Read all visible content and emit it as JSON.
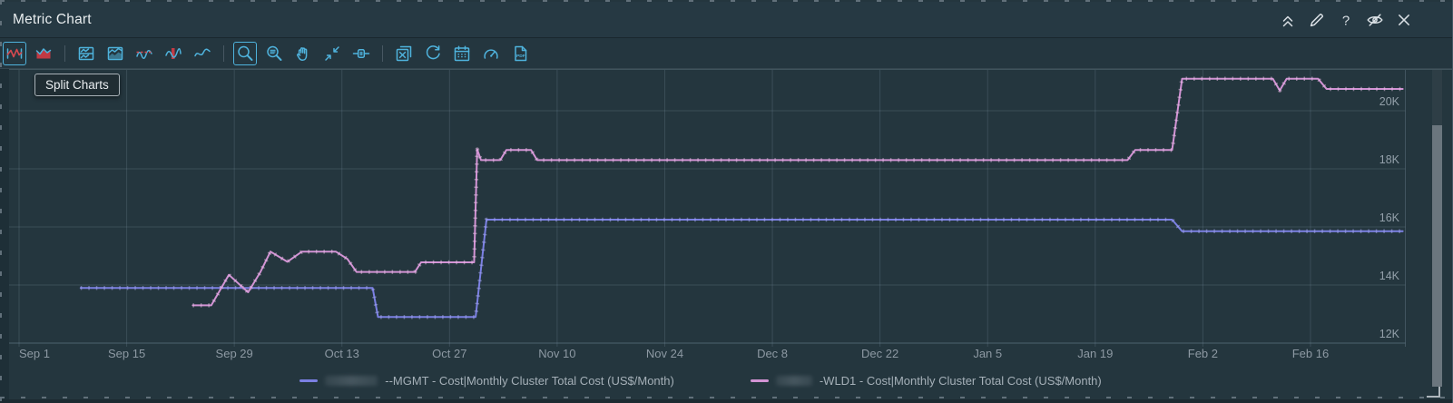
{
  "window": {
    "title": "Metric Chart",
    "actions": [
      "collapse",
      "edit",
      "help",
      "hide",
      "close"
    ]
  },
  "toolbar": {
    "icons": [
      "line-chart",
      "area-chart",
      "separator",
      "split-charts",
      "stacked-chart",
      "dynamic-thresholds",
      "anomalies",
      "trend-line",
      "separator",
      "zoom-view",
      "zoom-context",
      "pan",
      "zoom-all",
      "date-controls",
      "separator",
      "clear-selections",
      "refresh",
      "calendar",
      "dashboard",
      "export-pdf"
    ],
    "active": [
      "line-chart",
      "zoom-view"
    ],
    "accent_blue": "#4fb3dd",
    "accent_red": "#d4494f"
  },
  "tooltip": {
    "text": "Split Charts"
  },
  "legend": {
    "items": [
      {
        "label": "--MGMT - Cost|Monthly Cluster Total Cost (US$/Month)",
        "color": "#7b80e3",
        "prefix_redacted": true,
        "redacted_width": 58
      },
      {
        "label": "-WLD1 - Cost|Monthly Cluster Total Cost (US$/Month)",
        "color": "#d293d4",
        "prefix_redacted": true,
        "redacted_width": 40
      }
    ]
  },
  "chart_data": {
    "type": "line",
    "title": "",
    "x_axis": {
      "tick_labels": [
        "Sep 1",
        "Sep 15",
        "Sep 29",
        "Oct 13",
        "Oct 27",
        "Nov 10",
        "Nov 24",
        "Dec 8",
        "Dec 22",
        "Jan 5",
        "Jan 19",
        "Feb 2",
        "Feb 16"
      ],
      "tick_interval_days": 14,
      "grid": true,
      "note": "series x values are days from Sep 1"
    },
    "y_axis": {
      "tick_labels": [
        "12K",
        "14K",
        "16K",
        "18K",
        "20K"
      ],
      "tick_values_usd": [
        12000,
        14000,
        16000,
        18000,
        20000
      ],
      "range_usd": [
        11700,
        21700
      ],
      "unit": "US$/Month",
      "side": "right",
      "grid": true
    },
    "legend_position": "bottom",
    "series": [
      {
        "name": "MGMT - Cost|Monthly Cluster Total Cost (US$/Month)",
        "prefix_redacted": true,
        "color": "#7b80e3",
        "marker_color": "#a7aaf2",
        "points_day_usd": [
          [
            8,
            13900
          ],
          [
            46,
            13900
          ],
          [
            46.7,
            12900
          ],
          [
            59.4,
            12900
          ],
          [
            60.8,
            16250
          ],
          [
            150,
            16250
          ],
          [
            151.3,
            15850
          ],
          [
            180,
            15850
          ]
        ]
      },
      {
        "name": "WLD1 - Cost|Monthly Cluster Total Cost (US$/Month)",
        "prefix_redacted": true,
        "color": "#d293d4",
        "marker_color": "#ecc0ea",
        "points_day_usd": [
          [
            22.6,
            13300
          ],
          [
            25,
            13300
          ],
          [
            27.3,
            14350
          ],
          [
            29.8,
            13750
          ],
          [
            31.4,
            14450
          ],
          [
            32.7,
            15150
          ],
          [
            34.9,
            14800
          ],
          [
            36.8,
            15150
          ],
          [
            41.2,
            15150
          ],
          [
            42.7,
            14900
          ],
          [
            43.9,
            14450
          ],
          [
            51.5,
            14450
          ],
          [
            52.3,
            14780
          ],
          [
            59.2,
            14780
          ],
          [
            59.6,
            18670
          ],
          [
            60.1,
            18300
          ],
          [
            62.6,
            18300
          ],
          [
            63.4,
            18650
          ],
          [
            66.6,
            18650
          ],
          [
            67.4,
            18300
          ],
          [
            144.2,
            18300
          ],
          [
            145.2,
            18650
          ],
          [
            150,
            18650
          ],
          [
            151.3,
            21100
          ],
          [
            163.1,
            21100
          ],
          [
            164,
            20700
          ],
          [
            164.9,
            21100
          ],
          [
            169,
            21100
          ],
          [
            170.1,
            20750
          ],
          [
            180,
            20750
          ]
        ]
      }
    ]
  }
}
